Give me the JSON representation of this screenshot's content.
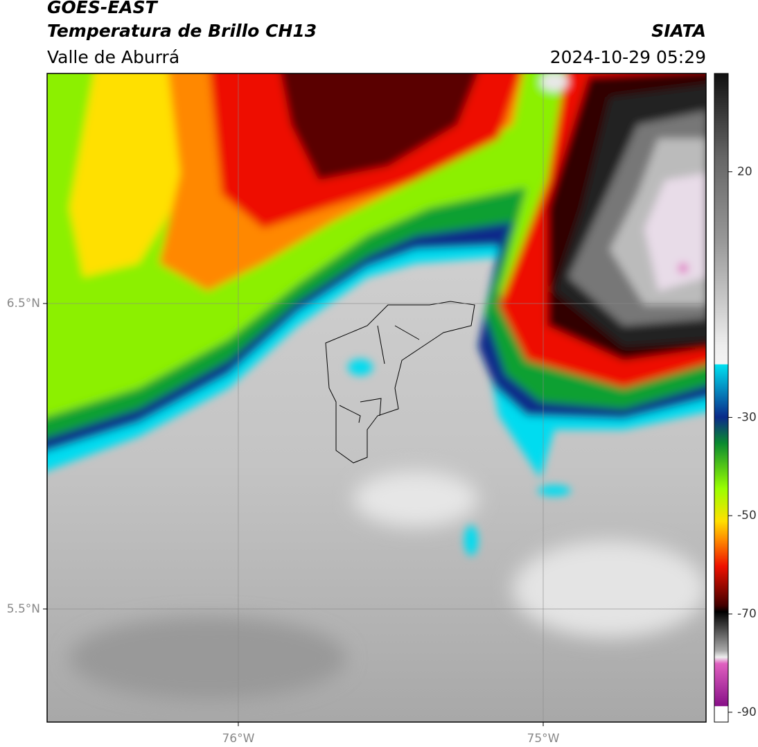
{
  "header": {
    "title": "GOES-EAST",
    "subtitle": "Temperatura de Brillo CH13",
    "region": "Valle de Aburrá",
    "source": "SIATA",
    "datetime": "2024-10-29 05:29"
  },
  "map": {
    "xlim": [
      -76.627,
      -74.466
    ],
    "ylim": [
      5.13,
      7.253
    ],
    "xticks": [
      {
        "value": -76,
        "label": "76°W"
      },
      {
        "value": -75,
        "label": "75°W"
      }
    ],
    "yticks": [
      {
        "value": 6.5,
        "label": "6.5°N"
      },
      {
        "value": 5.5,
        "label": "5.5°N"
      }
    ],
    "grid": true
  },
  "colorbar": {
    "lim": [
      -92,
      40
    ],
    "ticks": [
      20,
      -30,
      -50,
      -70,
      -90
    ]
  }
}
